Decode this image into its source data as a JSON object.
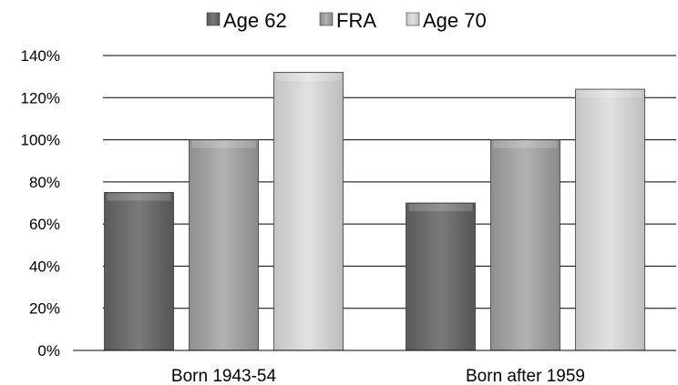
{
  "chart_data": {
    "type": "bar",
    "categories": [
      "Born 1943-54",
      "Born after 1959"
    ],
    "series": [
      {
        "name": "Age 62",
        "values": [
          75,
          70
        ],
        "color": "#6e6e6e"
      },
      {
        "name": "FRA",
        "values": [
          100,
          100
        ],
        "color": "#a4a4a4"
      },
      {
        "name": "Age 70",
        "values": [
          132,
          124
        ],
        "color": "#d4d4d4"
      }
    ],
    "ylim": [
      0,
      140
    ],
    "yticks": [
      0,
      20,
      40,
      60,
      80,
      100,
      120,
      140
    ],
    "ytick_format": "percent",
    "grid": true,
    "legend_position": "top-center",
    "title": "",
    "xlabel": "",
    "ylabel": ""
  }
}
